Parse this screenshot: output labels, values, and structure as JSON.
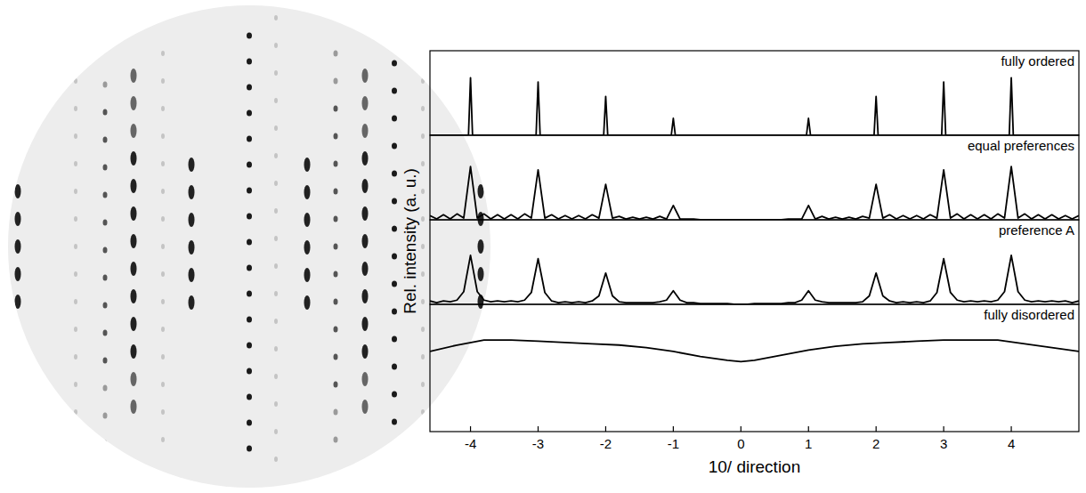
{
  "chart_data": [
    {
      "type": "line",
      "title": "fully ordered",
      "color": "#000000",
      "tick_labels": false,
      "xlim": [
        -4.6,
        5.0
      ],
      "ylim": [
        0,
        1
      ],
      "x": [
        -4.6,
        -4.03,
        -4.0,
        -3.97,
        -3.03,
        -3.0,
        -2.97,
        -2.03,
        -2.0,
        -1.97,
        -1.03,
        -1.0,
        -0.97,
        0.97,
        1.0,
        1.03,
        1.97,
        2.0,
        2.03,
        2.97,
        3.0,
        3.03,
        3.97,
        4.0,
        4.03,
        5.0
      ],
      "values": [
        0,
        0,
        0.68,
        0,
        0,
        0.63,
        0,
        0,
        0.46,
        0,
        0,
        0.2,
        0,
        0,
        0.2,
        0,
        0,
        0.46,
        0,
        0,
        0.63,
        0,
        0,
        0.68,
        0,
        0
      ]
    },
    {
      "type": "line",
      "title": "equal preferences",
      "color": "#000000",
      "tick_labels": false,
      "xlim": [
        -4.6,
        5.0
      ],
      "ylim": [
        0,
        1
      ],
      "x": [
        -4.6,
        -4.5,
        -4.4,
        -4.3,
        -4.2,
        -4.1,
        -4.0,
        -3.9,
        -3.8,
        -3.7,
        -3.6,
        -3.5,
        -3.4,
        -3.3,
        -3.2,
        -3.1,
        -3.0,
        -2.9,
        -2.8,
        -2.7,
        -2.6,
        -2.5,
        -2.4,
        -2.3,
        -2.2,
        -2.1,
        -2.0,
        -1.9,
        -1.8,
        -1.7,
        -1.6,
        -1.5,
        -1.4,
        -1.3,
        -1.2,
        -1.1,
        -1.0,
        -0.9,
        -0.8,
        -0.7,
        -0.6,
        -0.5,
        -0.4,
        -0.3,
        -0.2,
        -0.1,
        0,
        0.1,
        0.2,
        0.3,
        0.4,
        0.5,
        0.6,
        0.7,
        0.8,
        0.9,
        1.0,
        1.1,
        1.2,
        1.3,
        1.4,
        1.5,
        1.6,
        1.7,
        1.8,
        1.9,
        2.0,
        2.1,
        2.2,
        2.3,
        2.4,
        2.5,
        2.6,
        2.7,
        2.8,
        2.9,
        3.0,
        3.1,
        3.2,
        3.3,
        3.4,
        3.5,
        3.6,
        3.7,
        3.8,
        3.9,
        4.0,
        4.1,
        4.2,
        4.3,
        4.4,
        4.5,
        4.6,
        4.7,
        4.8,
        4.9,
        5.0
      ],
      "values": [
        0.05,
        0.01,
        0.06,
        0.01,
        0.07,
        0.02,
        0.63,
        0.02,
        0.07,
        0.01,
        0.06,
        0.01,
        0.06,
        0.01,
        0.07,
        0.02,
        0.59,
        0.02,
        0.06,
        0.01,
        0.05,
        0.01,
        0.05,
        0.01,
        0.06,
        0.02,
        0.42,
        0.02,
        0.04,
        0.01,
        0.03,
        0.01,
        0.03,
        0.01,
        0.04,
        0.01,
        0.17,
        0.01,
        0.01,
        0.01,
        0,
        0,
        0,
        0,
        0,
        0,
        0,
        0,
        0,
        0,
        0,
        0,
        0,
        0.01,
        0.01,
        0.01,
        0.17,
        0.01,
        0.04,
        0.01,
        0.03,
        0.01,
        0.03,
        0.01,
        0.04,
        0.02,
        0.42,
        0.02,
        0.06,
        0.01,
        0.05,
        0.01,
        0.05,
        0.01,
        0.06,
        0.02,
        0.59,
        0.02,
        0.07,
        0.01,
        0.06,
        0.01,
        0.06,
        0.01,
        0.07,
        0.02,
        0.63,
        0.02,
        0.07,
        0.01,
        0.06,
        0.01,
        0.06,
        0.01,
        0.05,
        0.01,
        0.05
      ]
    },
    {
      "type": "line",
      "title": "preference A",
      "color": "#000000",
      "tick_labels": false,
      "xlim": [
        -4.6,
        5.0
      ],
      "ylim": [
        0,
        1
      ],
      "x": [
        -4.6,
        -4.5,
        -4.4,
        -4.3,
        -4.2,
        -4.1,
        -4.0,
        -3.9,
        -3.8,
        -3.7,
        -3.6,
        -3.5,
        -3.4,
        -3.3,
        -3.2,
        -3.1,
        -3.0,
        -2.9,
        -2.8,
        -2.7,
        -2.6,
        -2.5,
        -2.4,
        -2.3,
        -2.2,
        -2.1,
        -2.0,
        -1.9,
        -1.8,
        -1.7,
        -1.6,
        -1.5,
        -1.4,
        -1.3,
        -1.2,
        -1.1,
        -1.0,
        -0.9,
        -0.8,
        -0.7,
        -0.6,
        -0.5,
        -0.4,
        -0.3,
        -0.2,
        -0.1,
        0,
        0.1,
        0.2,
        0.3,
        0.4,
        0.5,
        0.6,
        0.7,
        0.8,
        0.9,
        1.0,
        1.1,
        1.2,
        1.3,
        1.4,
        1.5,
        1.6,
        1.7,
        1.8,
        1.9,
        2.0,
        2.1,
        2.2,
        2.3,
        2.4,
        2.5,
        2.6,
        2.7,
        2.8,
        2.9,
        3.0,
        3.1,
        3.2,
        3.3,
        3.4,
        3.5,
        3.6,
        3.7,
        3.8,
        3.9,
        4.0,
        4.1,
        4.2,
        4.3,
        4.4,
        4.5,
        4.6,
        4.7,
        4.8,
        4.9,
        5.0
      ],
      "values": [
        0.04,
        0.02,
        0.04,
        0.03,
        0.05,
        0.15,
        0.58,
        0.15,
        0.05,
        0.03,
        0.04,
        0.03,
        0.04,
        0.03,
        0.05,
        0.14,
        0.54,
        0.14,
        0.04,
        0.02,
        0.03,
        0.02,
        0.03,
        0.02,
        0.04,
        0.1,
        0.37,
        0.1,
        0.03,
        0.02,
        0.02,
        0.02,
        0.02,
        0.02,
        0.03,
        0.05,
        0.16,
        0.05,
        0.02,
        0.02,
        0.01,
        0.01,
        0.01,
        0.01,
        0.01,
        0,
        0,
        0,
        0.01,
        0.01,
        0.01,
        0.01,
        0.01,
        0.02,
        0.02,
        0.05,
        0.16,
        0.05,
        0.03,
        0.02,
        0.02,
        0.02,
        0.02,
        0.02,
        0.03,
        0.1,
        0.37,
        0.1,
        0.04,
        0.02,
        0.03,
        0.02,
        0.03,
        0.02,
        0.04,
        0.14,
        0.54,
        0.14,
        0.05,
        0.03,
        0.04,
        0.03,
        0.04,
        0.03,
        0.05,
        0.15,
        0.58,
        0.15,
        0.05,
        0.03,
        0.04,
        0.03,
        0.04,
        0.03,
        0.04,
        0.02,
        0.04
      ]
    },
    {
      "type": "line",
      "title": "fully disordered",
      "color": "#000000",
      "tick_labels": "x",
      "xlabel": "10/ direction",
      "ylabel": "Rel. intensity (a. u.)",
      "xlim": [
        -4.6,
        5.0
      ],
      "ylim": [
        0,
        1
      ],
      "xticks": [
        -4,
        -3,
        -2,
        -1,
        0,
        1,
        2,
        3,
        4
      ],
      "x": [
        -4.6,
        -4.2,
        -3.8,
        -3.4,
        -3.0,
        -2.6,
        -2.2,
        -1.8,
        -1.4,
        -1.0,
        -0.6,
        -0.2,
        0,
        0.2,
        0.6,
        1.0,
        1.4,
        1.8,
        2.2,
        2.6,
        3.0,
        3.4,
        3.8,
        4.2,
        4.6,
        5.0
      ],
      "values": [
        0.63,
        0.68,
        0.72,
        0.72,
        0.71,
        0.7,
        0.69,
        0.68,
        0.66,
        0.63,
        0.59,
        0.56,
        0.55,
        0.56,
        0.6,
        0.64,
        0.67,
        0.69,
        0.7,
        0.71,
        0.72,
        0.72,
        0.72,
        0.69,
        0.66,
        0.63
      ]
    }
  ]
}
